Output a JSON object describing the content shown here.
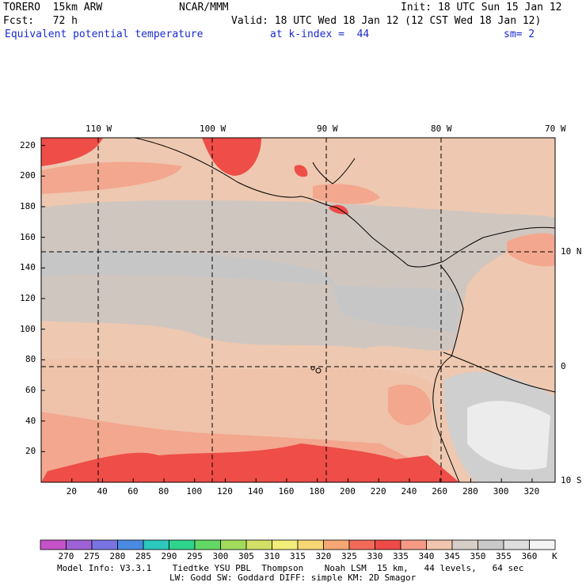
{
  "header": {
    "model": "TORERO  15km ARW",
    "center": "NCAR/MMM",
    "init": "Init: 18 UTC Sun 15 Jan 12",
    "fcst": "Fcst:   72 h",
    "valid": "Valid: 18 UTC Wed 18 Jan 12 (12 CST Wed 18 Jan 12)",
    "field": "Equivalent potential temperature",
    "level": "at k-index =  44",
    "smooth": "sm= 2"
  },
  "lon_labels": [
    "110 W",
    "100 W",
    "90 W",
    "80 W",
    "70 W"
  ],
  "lat_labels": [
    "10 N",
    "0",
    "10 S"
  ],
  "y_ticks": [
    "20",
    "40",
    "60",
    "80",
    "100",
    "120",
    "140",
    "160",
    "180",
    "200",
    "220"
  ],
  "x_ticks": [
    "20",
    "40",
    "60",
    "80",
    "100",
    "120",
    "140",
    "160",
    "180",
    "200",
    "220",
    "240",
    "260",
    "280",
    "300",
    "320"
  ],
  "colorbar": {
    "labels": [
      "270",
      "275",
      "280",
      "285",
      "290",
      "295",
      "300",
      "305",
      "310",
      "315",
      "320",
      "325",
      "330",
      "335",
      "340",
      "345",
      "350",
      "355",
      "360"
    ],
    "unit": "K",
    "colors": [
      "#c552c8",
      "#9e62d6",
      "#7a74e2",
      "#4a8be2",
      "#2cc7bd",
      "#2fd48d",
      "#63d965",
      "#a2dc5d",
      "#d2e065",
      "#f3ee79",
      "#f7d774",
      "#f5a773",
      "#f26a5a",
      "#ee4b48",
      "#f69a84",
      "#f2c6ae",
      "#d8cec8",
      "#c9c9c9",
      "#dedede",
      "#f4f4f4"
    ]
  },
  "footer": {
    "line1": "Model Info: V3.3.1    Tiedtke YSU PBL  Thompson    Noah LSM  15 km,   44 levels,   64 sec",
    "line2": "LW: Godd SW: Goddard DIFF: simple KM: 2D Smagor"
  }
}
